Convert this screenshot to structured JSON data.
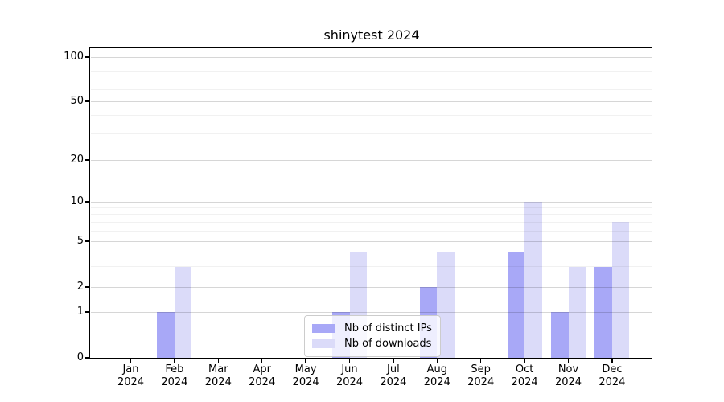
{
  "chart_data": {
    "type": "bar",
    "title": "shinytest 2024",
    "categories": [
      "Jan",
      "Feb",
      "Mar",
      "Apr",
      "May",
      "Jun",
      "Jul",
      "Aug",
      "Sep",
      "Oct",
      "Nov",
      "Dec"
    ],
    "category_year": "2024",
    "series": [
      {
        "name": "Nb of distinct IPs",
        "color": "#a8a8f7",
        "values": [
          0,
          1,
          0,
          0,
          0,
          1,
          0,
          2,
          0,
          4,
          1,
          3
        ]
      },
      {
        "name": "Nb of downloads",
        "color": "#dbdbf9",
        "values": [
          0,
          3,
          0,
          0,
          0,
          4,
          0,
          4,
          0,
          10,
          3,
          7
        ]
      }
    ],
    "xlabel": "",
    "ylabel": "",
    "y_axis": {
      "scale": "symlog",
      "tick_values": [
        0,
        1,
        2,
        5,
        10,
        20,
        50,
        100
      ],
      "minor_gridline_values": [
        3,
        4,
        6,
        7,
        8,
        9,
        30,
        40,
        60,
        70,
        80,
        90
      ],
      "ylim": [
        0,
        115
      ]
    },
    "grid": true,
    "legend": {
      "position": "lower center"
    }
  }
}
